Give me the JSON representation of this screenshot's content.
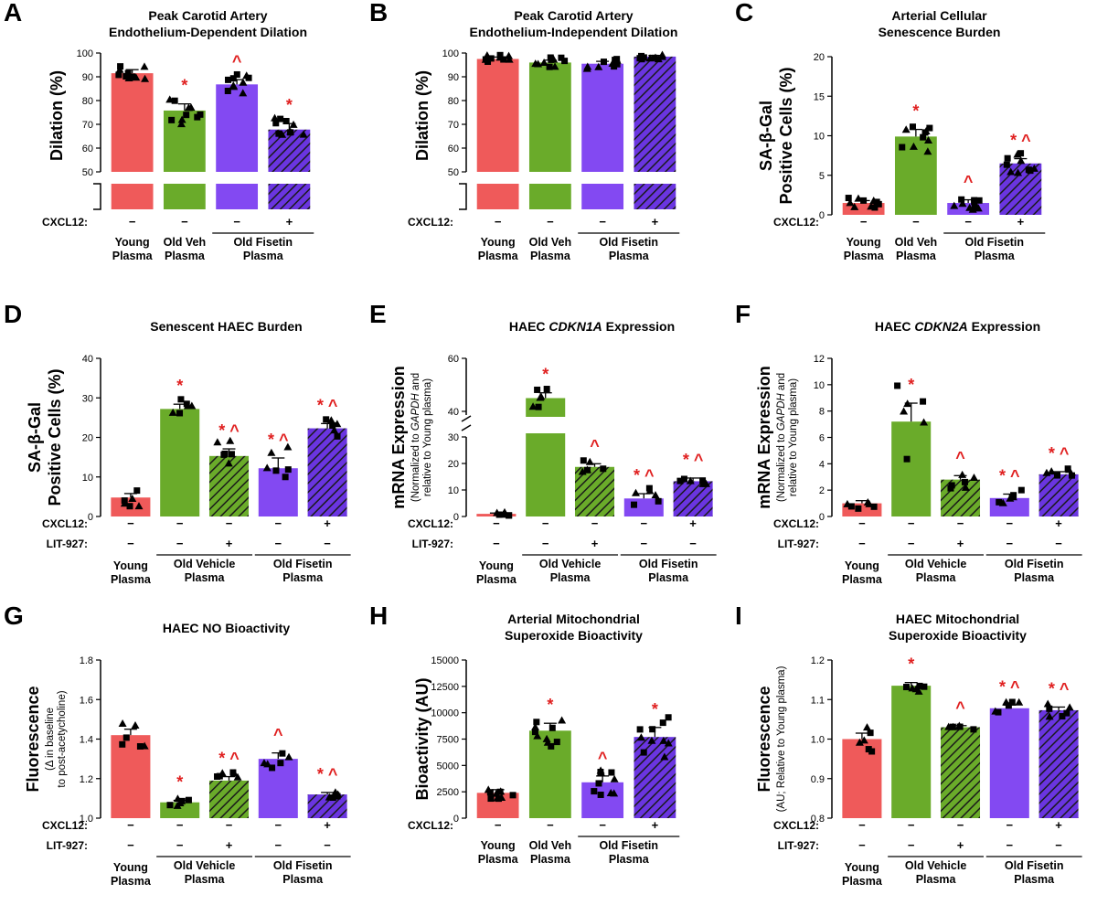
{
  "colors": {
    "young": "#ef5a5a",
    "old_veh": "#6aab2a",
    "fisetin": "#8349f2",
    "fisetin_cxcl": "#6a35e0",
    "old_veh_lit": "#6aab2a",
    "sig": "#e02020"
  },
  "chart_data": [
    {
      "letter": "A",
      "type": "bar",
      "title": [
        "Peak Carotid Artery",
        "Endothelium-Dependent Dilation"
      ],
      "ylabel": [
        "Dilation (%)"
      ],
      "ylim": [
        50,
        100
      ],
      "yticks": [
        "50",
        "60",
        "70",
        "80",
        "90",
        "100"
      ],
      "break": true,
      "categories": [
        "Young Plasma",
        "Old Veh Plasma",
        "Old Fisetin Plasma (CXCL12 −)",
        "Old Fisetin Plasma (CXCL12 +)"
      ],
      "values": [
        91.5,
        75.8,
        86.8,
        67.8
      ],
      "errors": [
        1.5,
        2.8,
        2.0,
        2.5
      ],
      "styles": [
        "young",
        "old_veh",
        "fisetin",
        "fisetin_hatch"
      ],
      "sig": [
        "",
        "*",
        "^",
        "*"
      ],
      "rows": [
        {
          "label": "CXCL12:",
          "marks": [
            "−",
            "−",
            "−",
            "+"
          ]
        }
      ],
      "groups": [
        {
          "text": [
            "Young",
            "Plasma"
          ],
          "bars": [
            0
          ]
        },
        {
          "text": [
            "Old Veh",
            "Plasma"
          ],
          "bars": [
            1
          ]
        },
        {
          "text": [
            "Old Fisetin",
            "Plasma"
          ],
          "bars": [
            2,
            3
          ],
          "line": true
        }
      ]
    },
    {
      "letter": "B",
      "type": "bar",
      "title": [
        "Peak Carotid Artery",
        "Endothelium-Independent Dilation"
      ],
      "ylabel": [
        "Dilation (%)"
      ],
      "ylim": [
        50,
        100
      ],
      "yticks": [
        "50",
        "60",
        "70",
        "80",
        "90",
        "100"
      ],
      "break": true,
      "categories": [
        "Young Plasma",
        "Old Veh Plasma",
        "Old Fisetin Plasma (CXCL12 −)",
        "Old Fisetin Plasma (CXCL12 +)"
      ],
      "values": [
        97.5,
        96.0,
        95.5,
        98.5
      ],
      "errors": [
        0.8,
        1.0,
        1.0,
        0.5
      ],
      "styles": [
        "young",
        "old_veh",
        "fisetin",
        "fisetin_hatch"
      ],
      "sig": [
        "",
        "",
        "",
        ""
      ],
      "rows": [
        {
          "label": "CXCL12:",
          "marks": [
            "−",
            "−",
            "−",
            "+"
          ]
        }
      ],
      "groups": [
        {
          "text": [
            "Young",
            "Plasma"
          ],
          "bars": [
            0
          ]
        },
        {
          "text": [
            "Old Veh",
            "Plasma"
          ],
          "bars": [
            1
          ]
        },
        {
          "text": [
            "Old Fisetin",
            "Plasma"
          ],
          "bars": [
            2,
            3
          ],
          "line": true
        }
      ]
    },
    {
      "letter": "C",
      "type": "bar",
      "title": [
        "Arterial Cellular",
        "Senescence Burden"
      ],
      "ylabel": [
        "SA-β-Gal",
        "Positive Cells (%)"
      ],
      "ylim": [
        0,
        20
      ],
      "yticks": [
        "0",
        "5",
        "10",
        "15",
        "20"
      ],
      "break": false,
      "categories": [
        "Young Plasma",
        "Old Veh Plasma",
        "Old Fisetin Plasma (CXCL12 −)",
        "Old Fisetin Plasma (CXCL12 +)"
      ],
      "values": [
        1.5,
        9.9,
        1.5,
        6.5
      ],
      "errors": [
        0.3,
        0.9,
        0.4,
        0.6
      ],
      "styles": [
        "young",
        "old_veh",
        "fisetin",
        "fisetin_hatch"
      ],
      "sig": [
        "",
        "*",
        "^",
        "* ^"
      ],
      "rows": [
        {
          "label": "CXCL12:",
          "marks": [
            "−",
            "−",
            "−",
            "+"
          ]
        }
      ],
      "groups": [
        {
          "text": [
            "Young",
            "Plasma"
          ],
          "bars": [
            0
          ]
        },
        {
          "text": [
            "Old Veh",
            "Plasma"
          ],
          "bars": [
            1
          ]
        },
        {
          "text": [
            "Old Fisetin",
            "Plasma"
          ],
          "bars": [
            2,
            3
          ],
          "line": true
        }
      ]
    },
    {
      "letter": "D",
      "type": "bar",
      "title": [
        "Senescent HAEC Burden"
      ],
      "ylabel": [
        "SA-β-Gal",
        "Positive Cells (%)"
      ],
      "ylim": [
        0,
        40
      ],
      "yticks": [
        "0",
        "10",
        "20",
        "30",
        "40"
      ],
      "break": false,
      "categories": [
        "Young Plasma",
        "Old Vehicle Plasma",
        "Old Vehicle Plasma + LIT-927",
        "Old Fisetin Plasma",
        "Old Fisetin Plasma + CXCL12"
      ],
      "values": [
        4.8,
        27.2,
        15.3,
        12.2,
        22.3
      ],
      "errors": [
        1.0,
        1.2,
        1.8,
        2.6,
        1.2
      ],
      "styles": [
        "young",
        "old_veh",
        "old_veh_hatch",
        "fisetin",
        "fisetin_hatch"
      ],
      "sig": [
        "",
        "*",
        "* ^",
        "* ^",
        "* ^"
      ],
      "rows": [
        {
          "label": "CXCL12:",
          "marks": [
            "−",
            "−",
            "−",
            "−",
            "+"
          ]
        },
        {
          "label": "LIT-927:",
          "marks": [
            "−",
            "−",
            "+",
            "−",
            "−"
          ]
        }
      ],
      "groups": [
        {
          "text": [
            "Young",
            "Plasma"
          ],
          "bars": [
            0
          ]
        },
        {
          "text": [
            "Old Vehicle",
            "Plasma"
          ],
          "bars": [
            1,
            2
          ],
          "line": true
        },
        {
          "text": [
            "Old Fisetin",
            "Plasma"
          ],
          "bars": [
            3,
            4
          ],
          "line": true
        }
      ]
    },
    {
      "letter": "E",
      "type": "bar",
      "title": [
        "HAEC ",
        "CDKN1A",
        " Expression"
      ],
      "ylabel": [
        "mRNA Expression"
      ],
      "ylabel_sub": [
        "(Normalized to ",
        "GAPDH",
        " and",
        "relative to Young plasma)"
      ],
      "ylim": [
        0,
        30
      ],
      "yticks": [
        "0",
        "10",
        "20",
        "30"
      ],
      "upper_ticks": [
        "40",
        "60"
      ],
      "break": true,
      "categories": [
        "Young Plasma",
        "Old Vehicle Plasma",
        "Old Vehicle Plasma + LIT-927",
        "Old Fisetin Plasma",
        "Old Fisetin Plasma + CXCL12"
      ],
      "values": [
        1.0,
        45.0,
        18.7,
        6.8,
        13.3
      ],
      "errors": [
        0.3,
        2.0,
        1.2,
        1.8,
        1.2
      ],
      "styles": [
        "young",
        "old_veh",
        "old_veh_hatch",
        "fisetin",
        "fisetin_hatch"
      ],
      "sig": [
        "",
        "*",
        "^",
        "* ^",
        "* ^"
      ],
      "rows": [
        {
          "label": "CXCL12:",
          "marks": [
            "−",
            "−",
            "−",
            "−",
            "+"
          ]
        },
        {
          "label": "LIT-927:",
          "marks": [
            "−",
            "−",
            "+",
            "−",
            "−"
          ]
        }
      ],
      "groups": [
        {
          "text": [
            "Young",
            "Plasma"
          ],
          "bars": [
            0
          ]
        },
        {
          "text": [
            "Old Vehicle",
            "Plasma"
          ],
          "bars": [
            1,
            2
          ],
          "line": true
        },
        {
          "text": [
            "Old Fisetin",
            "Plasma"
          ],
          "bars": [
            3,
            4
          ],
          "line": true
        }
      ]
    },
    {
      "letter": "F",
      "type": "bar",
      "title": [
        "HAEC ",
        "CDKN2A",
        " Expression"
      ],
      "ylabel": [
        "mRNA Expression"
      ],
      "ylabel_sub": [
        "(Normalized to ",
        "GAPDH",
        " and",
        "relative to Young plasma)"
      ],
      "ylim": [
        0,
        12
      ],
      "yticks": [
        "0",
        "2",
        "4",
        "6",
        "8",
        "10",
        "12"
      ],
      "break": false,
      "categories": [
        "Young Plasma",
        "Old Vehicle Plasma",
        "Old Vehicle Plasma + LIT-927",
        "Old Fisetin Plasma",
        "Old Fisetin Plasma + CXCL12"
      ],
      "values": [
        1.0,
        7.2,
        2.8,
        1.4,
        3.2
      ],
      "errors": [
        0.2,
        1.4,
        0.3,
        0.3,
        0.2
      ],
      "styles": [
        "young",
        "old_veh",
        "old_veh_hatch",
        "fisetin",
        "fisetin_hatch"
      ],
      "sig": [
        "",
        "*",
        "^",
        "* ^",
        "* ^"
      ],
      "rows": [
        {
          "label": "CXCL12:",
          "marks": [
            "−",
            "−",
            "−",
            "−",
            "+"
          ]
        },
        {
          "label": "LIT-927:",
          "marks": [
            "−",
            "−",
            "+",
            "−",
            "−"
          ]
        }
      ],
      "groups": [
        {
          "text": [
            "Young",
            "Plasma"
          ],
          "bars": [
            0
          ]
        },
        {
          "text": [
            "Old Vehicle",
            "Plasma"
          ],
          "bars": [
            1,
            2
          ],
          "line": true
        },
        {
          "text": [
            "Old Fisetin",
            "Plasma"
          ],
          "bars": [
            3,
            4
          ],
          "line": true
        }
      ]
    },
    {
      "letter": "G",
      "type": "bar",
      "title": [
        "HAEC NO Bioactivity"
      ],
      "ylabel": [
        "Fluorescence"
      ],
      "ylabel_sub": [
        "(Δ in baseline",
        "to post-acetycholine)"
      ],
      "ylim": [
        1.0,
        1.8
      ],
      "yticks": [
        "1.0",
        "1.2",
        "1.4",
        "1.6",
        "1.8"
      ],
      "break": false,
      "categories": [
        "Young Plasma",
        "Old Vehicle Plasma",
        "Old Vehicle Plasma + LIT-927",
        "Old Fisetin Plasma",
        "Old Fisetin Plasma + CXCL12"
      ],
      "values": [
        1.42,
        1.08,
        1.19,
        1.3,
        1.12
      ],
      "errors": [
        0.03,
        0.01,
        0.02,
        0.03,
        0.01
      ],
      "styles": [
        "young",
        "old_veh",
        "old_veh_hatch",
        "fisetin",
        "fisetin_hatch"
      ],
      "sig": [
        "",
        "*",
        "* ^",
        "^",
        "* ^"
      ],
      "rows": [
        {
          "label": "CXCL12:",
          "marks": [
            "−",
            "−",
            "−",
            "−",
            "+"
          ]
        },
        {
          "label": "LIT-927:",
          "marks": [
            "−",
            "−",
            "+",
            "−",
            "−"
          ]
        }
      ],
      "groups": [
        {
          "text": [
            "Young",
            "Plasma"
          ],
          "bars": [
            0
          ]
        },
        {
          "text": [
            "Old Vehicle",
            "Plasma"
          ],
          "bars": [
            1,
            2
          ],
          "line": true
        },
        {
          "text": [
            "Old Fisetin",
            "Plasma"
          ],
          "bars": [
            3,
            4
          ],
          "line": true
        }
      ]
    },
    {
      "letter": "H",
      "type": "bar",
      "title": [
        "Arterial Mitochondrial",
        "Superoxide Bioactivity"
      ],
      "ylabel": [
        "Bioactivity (AU)"
      ],
      "ylim": [
        0,
        15000
      ],
      "yticks": [
        "0",
        "2500",
        "5000",
        "7500",
        "10000",
        "12500",
        "15000"
      ],
      "break": false,
      "categories": [
        "Young Plasma",
        "Old Veh Plasma",
        "Old Fisetin Plasma (CXCL12 −)",
        "Old Fisetin Plasma (CXCL12 +)"
      ],
      "values": [
        2400,
        8300,
        3400,
        7700
      ],
      "errors": [
        300,
        700,
        600,
        900
      ],
      "styles": [
        "young",
        "old_veh",
        "fisetin",
        "fisetin_hatch"
      ],
      "sig": [
        "",
        "*",
        "^",
        "*"
      ],
      "rows": [
        {
          "label": "CXCL12:",
          "marks": [
            "−",
            "−",
            "−",
            "+"
          ]
        }
      ],
      "groups": [
        {
          "text": [
            "Young",
            "Plasma"
          ],
          "bars": [
            0
          ]
        },
        {
          "text": [
            "Old Veh",
            "Plasma"
          ],
          "bars": [
            1
          ]
        },
        {
          "text": [
            "Old Fisetin",
            "Plasma"
          ],
          "bars": [
            2,
            3
          ],
          "line": true
        }
      ]
    },
    {
      "letter": "I",
      "type": "bar",
      "title": [
        "HAEC Mitochondrial",
        "Superoxide Bioactivity"
      ],
      "ylabel": [
        "Fluorescence"
      ],
      "ylabel_sub": [
        "(AU; Relative to Young plasma)"
      ],
      "ylim": [
        0.8,
        1.2
      ],
      "yticks": [
        "0.8",
        "0.9",
        "1.0",
        "1.1",
        "1.2"
      ],
      "break": false,
      "categories": [
        "Young Plasma",
        "Old Vehicle Plasma",
        "Old Vehicle Plasma + LIT-927",
        "Old Fisetin Plasma",
        "Old Fisetin Plasma + CXCL12"
      ],
      "values": [
        1.0,
        1.135,
        1.03,
        1.078,
        1.073
      ],
      "errors": [
        0.015,
        0.008,
        0.004,
        0.008,
        0.008
      ],
      "styles": [
        "young",
        "old_veh",
        "old_veh_hatch",
        "fisetin",
        "fisetin_hatch"
      ],
      "sig": [
        "",
        "*",
        "^",
        "* ^",
        "* ^"
      ],
      "rows": [
        {
          "label": "CXCL12:",
          "marks": [
            "−",
            "−",
            "−",
            "−",
            "+"
          ]
        },
        {
          "label": "LIT-927:",
          "marks": [
            "−",
            "−",
            "+",
            "−",
            "−"
          ]
        }
      ],
      "groups": [
        {
          "text": [
            "Young",
            "Plasma"
          ],
          "bars": [
            0
          ]
        },
        {
          "text": [
            "Old Vehicle",
            "Plasma"
          ],
          "bars": [
            1,
            2
          ],
          "line": true
        },
        {
          "text": [
            "Old Fisetin",
            "Plasma"
          ],
          "bars": [
            3,
            4
          ],
          "line": true
        }
      ]
    }
  ]
}
